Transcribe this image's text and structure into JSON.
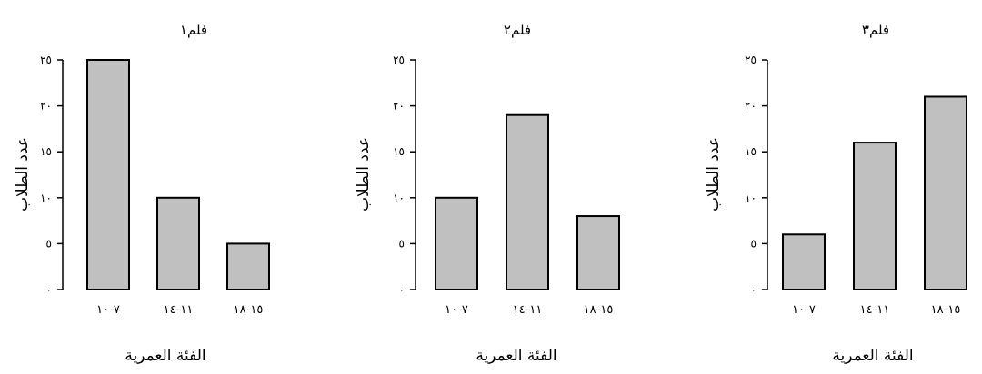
{
  "chart_data": [
    {
      "type": "bar",
      "title": "فلم١",
      "xlabel": "الفئة العمرية",
      "ylabel": "عدد الطلاب",
      "categories": [
        "٧-١٠",
        "١١-١٤",
        "١٥-١٨"
      ],
      "values": [
        25,
        10,
        5
      ],
      "ylim": [
        0,
        25
      ],
      "yticks": [
        0,
        5,
        10,
        15,
        20,
        25
      ],
      "ytick_labels": [
        "٠",
        "٥",
        "١٠",
        "١٥",
        "٢٠",
        "٢٥"
      ],
      "bar_color": "#c0c0c0",
      "grid": false
    },
    {
      "type": "bar",
      "title": "فلم٢",
      "xlabel": "الفئة العمرية",
      "ylabel": "عدد الطلاب",
      "categories": [
        "٧-١٠",
        "١١-١٤",
        "١٥-١٨"
      ],
      "values": [
        10,
        19,
        8
      ],
      "ylim": [
        0,
        25
      ],
      "yticks": [
        0,
        5,
        10,
        15,
        20,
        25
      ],
      "ytick_labels": [
        "٠",
        "٥",
        "١٠",
        "١٥",
        "٢٠",
        "٢٥"
      ],
      "bar_color": "#c0c0c0",
      "grid": false
    },
    {
      "type": "bar",
      "title": "فلم٣",
      "xlabel": "الفئة العمرية",
      "ylabel": "عدد الطلاب",
      "categories": [
        "٧-١٠",
        "١١-١٤",
        "١٥-١٨"
      ],
      "values": [
        6,
        16,
        21
      ],
      "ylim": [
        0,
        25
      ],
      "yticks": [
        0,
        5,
        10,
        15,
        20,
        25
      ],
      "ytick_labels": [
        "٠",
        "٥",
        "١٠",
        "١٥",
        "٢٠",
        "٢٥"
      ],
      "bar_color": "#c0c0c0",
      "grid": false
    }
  ]
}
